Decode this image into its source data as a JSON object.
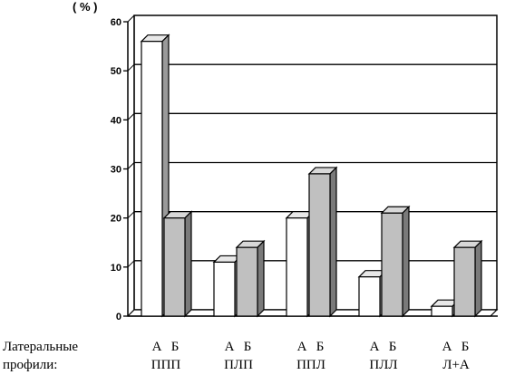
{
  "chart_data": {
    "type": "bar",
    "unit_label": "( % )",
    "ylim": [
      0,
      60
    ],
    "yticks": [
      "0",
      "10",
      "20",
      "30",
      "40",
      "50",
      "60"
    ],
    "grid": true,
    "row_labels": [
      "Латеральные",
      "профили:"
    ],
    "categories": [
      "ППП",
      "ПЛП",
      "ППЛ",
      "ПЛЛ",
      "Л+А"
    ],
    "series": [
      {
        "name": "А",
        "color": "#ffffff",
        "values": [
          56,
          11,
          20,
          8,
          2
        ]
      },
      {
        "name": "Б",
        "color": "#c0c0c0",
        "values": [
          20,
          14,
          29,
          21,
          14
        ]
      }
    ]
  }
}
